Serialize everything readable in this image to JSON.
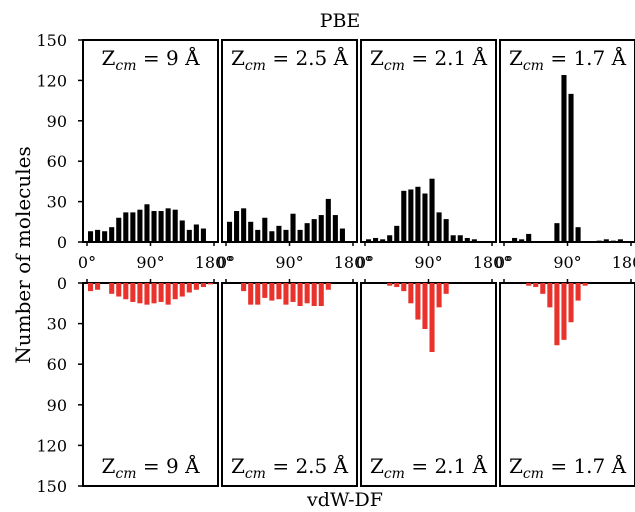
{
  "chart_data": {
    "type": "bar",
    "title_top": "PBE",
    "title_bottom": "vdW-DF",
    "ylabel": "Number of molecules",
    "ylim": [
      0,
      150
    ],
    "y_ticks": [
      "0",
      "30",
      "60",
      "90",
      "120",
      "150"
    ],
    "x_ticks": [
      "0°",
      "90°",
      "180°"
    ],
    "top_color": "#000000",
    "bottom_color": "#e8322b",
    "bin_centers_deg": [
      5,
      15,
      25,
      35,
      45,
      55,
      65,
      75,
      85,
      95,
      105,
      115,
      125,
      135,
      145,
      155,
      165,
      175
    ],
    "panels": [
      {
        "label_base": "Z",
        "label_sub": "cm",
        "label_value": " = 9 Å",
        "pbe": [
          8,
          9,
          8,
          11,
          18,
          22,
          22,
          24,
          28,
          23,
          23,
          25,
          24,
          16,
          9,
          13,
          10,
          0
        ],
        "vdw": [
          6,
          5,
          0,
          8,
          10,
          12,
          14,
          15,
          16,
          15,
          14,
          16,
          12,
          10,
          7,
          5,
          3,
          1
        ]
      },
      {
        "label_base": "Z",
        "label_sub": "cm",
        "label_value": " = 2.5 Å",
        "pbe": [
          15,
          23,
          25,
          15,
          9,
          18,
          8,
          12,
          9,
          21,
          9,
          14,
          17,
          20,
          32,
          20,
          10,
          0
        ],
        "vdw": [
          0,
          0,
          6,
          16,
          16,
          11,
          13,
          12,
          16,
          14,
          17,
          15,
          17,
          17,
          5,
          0,
          0,
          0
        ]
      },
      {
        "label_base": "Z",
        "label_sub": "cm",
        "label_value": " = 2.1 Å",
        "pbe": [
          2,
          3,
          2,
          5,
          12,
          38,
          39,
          41,
          36,
          47,
          22,
          17,
          5,
          5,
          3,
          2,
          0,
          0
        ],
        "vdw": [
          0,
          0,
          0,
          2,
          3,
          6,
          15,
          27,
          34,
          51,
          18,
          8,
          0,
          0,
          0,
          0,
          0,
          0
        ]
      },
      {
        "label_base": "Z",
        "label_sub": "cm",
        "label_value": " = 1.7 Å",
        "pbe": [
          0,
          3,
          2,
          6,
          0,
          0,
          0,
          14,
          124,
          110,
          11,
          0,
          0,
          1,
          2,
          1,
          2,
          0
        ],
        "vdw": [
          0,
          0,
          0,
          2,
          3,
          8,
          18,
          46,
          42,
          29,
          13,
          2,
          0,
          0,
          0,
          0,
          0,
          0
        ]
      }
    ]
  }
}
